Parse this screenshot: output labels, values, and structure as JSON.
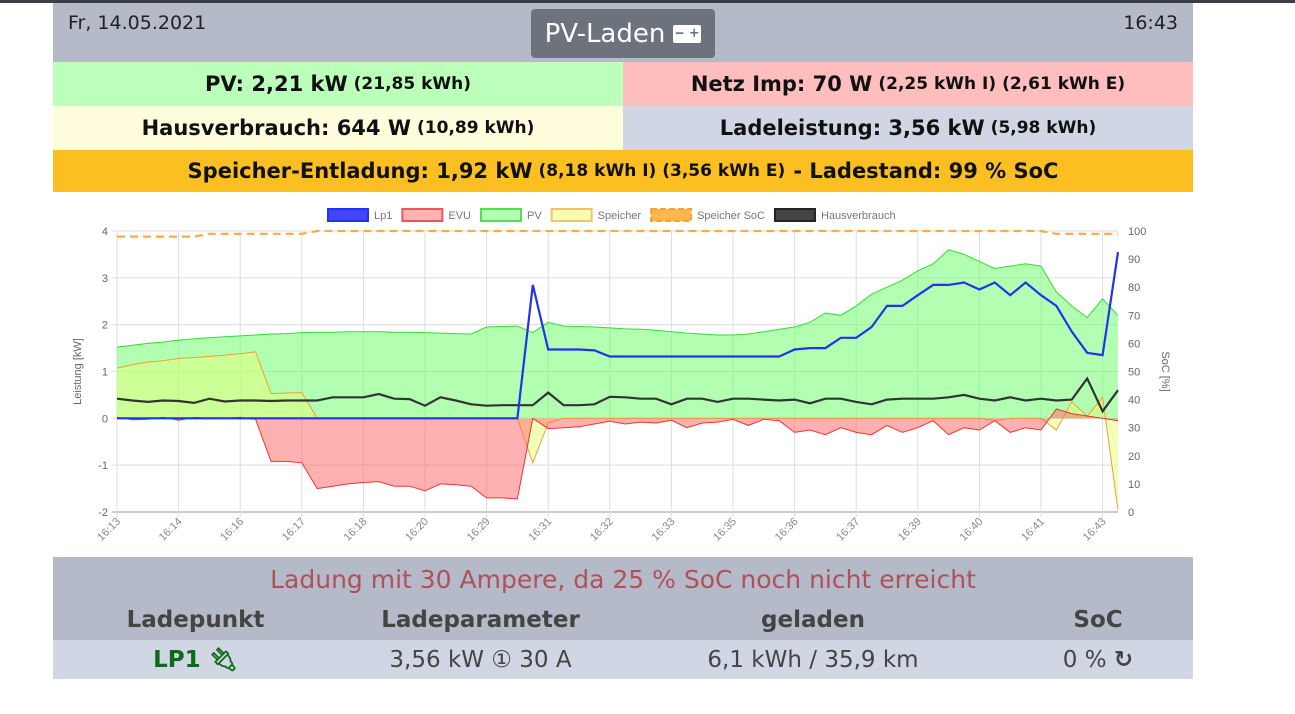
{
  "header": {
    "date": "Fr, 14.05.2021",
    "mode": "PV-Laden",
    "mode_icon": "car-battery-icon",
    "time": "16:43"
  },
  "tiles": {
    "pv": {
      "label": "PV: 2,21 kW",
      "sub": "(21,85 kWh)",
      "color": "#bbffbb"
    },
    "netz": {
      "label": "Netz Imp: 70 W",
      "sub": "(2,25 kWh I) (2,61 kWh E)",
      "color": "#ffbebe"
    },
    "haus": {
      "label": "Hausverbrauch: 644 W",
      "sub": "(10,89 kWh)",
      "color": "#fffddd"
    },
    "lade": {
      "label": "Ladeleistung: 3,56 kW",
      "sub": "(5,98 kWh)",
      "color": "#d0d6e4"
    },
    "speicher": {
      "label": "Speicher-Entladung: 1,92 kW",
      "sub": "(8,18 kWh I) (3,56 kWh E)",
      "tail": "- Ladestand: 99 % SoC",
      "color": "#fcbf22"
    }
  },
  "chart_data": {
    "type": "line",
    "ylabel": "Leistung [kW]",
    "y2label": "SoC [%]",
    "ylim": [
      -2,
      4
    ],
    "y2lim": [
      0,
      100
    ],
    "yticks": [
      "4",
      "3",
      "2",
      "1",
      "0",
      "-1",
      "-2"
    ],
    "y2ticks": [
      "100",
      "90",
      "80",
      "70",
      "60",
      "50",
      "40",
      "30",
      "20",
      "10",
      "0"
    ],
    "xticklabels": [
      "16:13",
      "16:14",
      "16:16",
      "16:17",
      "16:18",
      "16:20",
      "16:29",
      "16:31",
      "16:32",
      "16:33",
      "16:35",
      "16:36",
      "16:37",
      "16:39",
      "16:40",
      "16:41",
      "16:43"
    ],
    "legend": [
      "Lp1",
      "EVU",
      "PV",
      "Speicher",
      "Speicher SoC",
      "Hausverbrauch"
    ],
    "series": [
      {
        "name": "PV",
        "color": "#33dd33",
        "fill": "rgba(102,255,102,0.5)",
        "values": [
          1.52,
          1.56,
          1.6,
          1.63,
          1.67,
          1.7,
          1.72,
          1.74,
          1.76,
          1.78,
          1.8,
          1.81,
          1.83,
          1.84,
          1.84,
          1.85,
          1.85,
          1.85,
          1.84,
          1.84,
          1.83,
          1.82,
          1.81,
          1.8,
          1.95,
          1.96,
          1.97,
          1.83,
          2.05,
          1.97,
          1.96,
          1.95,
          1.93,
          1.91,
          1.9,
          1.88,
          1.85,
          1.82,
          1.8,
          1.78,
          1.78,
          1.8,
          1.85,
          1.9,
          1.95,
          2.05,
          2.25,
          2.2,
          2.4,
          2.65,
          2.8,
          2.95,
          3.15,
          3.3,
          3.6,
          3.5,
          3.35,
          3.2,
          3.25,
          3.3,
          3.25,
          2.7,
          2.4,
          2.15,
          2.55,
          2.2
        ]
      },
      {
        "name": "Speicher",
        "color": "#f0a030",
        "fill": "rgba(230,255,120,0.5)",
        "values": [
          1.07,
          1.15,
          1.2,
          1.23,
          1.28,
          1.3,
          1.32,
          1.35,
          1.38,
          1.42,
          0.53,
          0.54,
          0.55,
          0,
          0,
          0,
          0,
          0,
          0,
          0,
          0,
          0,
          0,
          0,
          0,
          0,
          0,
          -0.95,
          -0.1,
          0,
          0,
          0,
          0,
          0,
          0,
          0,
          0,
          0,
          0,
          0,
          0,
          0,
          0,
          0,
          0,
          0,
          0,
          0,
          0,
          0,
          0,
          0,
          0,
          0,
          0,
          0,
          0,
          -0.05,
          0,
          0,
          0,
          -0.25,
          0.35,
          0.05,
          0.45,
          -1.95
        ]
      },
      {
        "name": "EVU",
        "color": "#ee3333",
        "fill": "rgba(255,100,100,0.5)",
        "values": [
          0.02,
          -0.03,
          -0.02,
          0.02,
          -0.04,
          0.02,
          0,
          0,
          0.02,
          -0.02,
          -0.92,
          -0.92,
          -0.95,
          -1.5,
          -1.45,
          -1.4,
          -1.37,
          -1.35,
          -1.45,
          -1.45,
          -1.55,
          -1.4,
          -1.42,
          -1.45,
          -1.7,
          -1.7,
          -1.72,
          0,
          -0.22,
          -0.2,
          -0.18,
          -0.12,
          -0.06,
          -0.12,
          -0.08,
          -0.1,
          -0.04,
          -0.2,
          -0.1,
          -0.08,
          -0.02,
          -0.15,
          -0.02,
          -0.05,
          -0.3,
          -0.25,
          -0.35,
          -0.2,
          -0.3,
          -0.35,
          -0.15,
          -0.3,
          -0.2,
          -0.05,
          -0.35,
          -0.2,
          -0.25,
          -0.05,
          -0.3,
          -0.2,
          -0.25,
          0.2,
          0.1,
          0.05,
          0,
          -0.05
        ]
      },
      {
        "name": "Hausverbrauch",
        "color": "#333333",
        "values": [
          0.42,
          0.38,
          0.35,
          0.38,
          0.37,
          0.33,
          0.42,
          0.36,
          0.38,
          0.38,
          0.37,
          0.38,
          0.38,
          0.38,
          0.45,
          0.45,
          0.45,
          0.52,
          0.42,
          0.41,
          0.27,
          0.45,
          0.38,
          0.3,
          0.27,
          0.28,
          0.28,
          0.28,
          0.55,
          0.28,
          0.28,
          0.3,
          0.46,
          0.45,
          0.42,
          0.42,
          0.3,
          0.42,
          0.42,
          0.35,
          0.42,
          0.42,
          0.4,
          0.38,
          0.4,
          0.32,
          0.42,
          0.42,
          0.35,
          0.3,
          0.4,
          0.42,
          0.42,
          0.42,
          0.45,
          0.5,
          0.42,
          0.38,
          0.45,
          0.38,
          0.42,
          0.38,
          0.4,
          0.85,
          0.15,
          0.6
        ]
      },
      {
        "name": "Lp1",
        "color": "#2233ee",
        "values": [
          0,
          0,
          0,
          0,
          0,
          0,
          0,
          0,
          0,
          0,
          0,
          0,
          0,
          0,
          0,
          0,
          0,
          0,
          0,
          0,
          0,
          0,
          0,
          0,
          0,
          0,
          0,
          2.85,
          1.47,
          1.47,
          1.47,
          1.45,
          1.32,
          1.32,
          1.32,
          1.32,
          1.32,
          1.32,
          1.32,
          1.32,
          1.32,
          1.32,
          1.32,
          1.32,
          1.47,
          1.5,
          1.5,
          1.72,
          1.72,
          1.95,
          2.4,
          2.4,
          2.63,
          2.85,
          2.85,
          2.9,
          2.75,
          2.9,
          2.63,
          2.9,
          2.63,
          2.4,
          1.85,
          1.4,
          1.35,
          3.55
        ]
      },
      {
        "name": "Speicher SoC",
        "color": "#ffaa44",
        "axis": "y2",
        "dashed": true,
        "values": [
          98,
          98,
          98,
          98,
          98,
          98,
          99,
          99,
          99,
          99,
          99,
          99,
          99,
          100,
          100,
          100,
          100,
          100,
          100,
          100,
          100,
          100,
          100,
          100,
          100,
          100,
          100,
          100,
          100,
          100,
          100,
          100,
          100,
          100,
          100,
          100,
          100,
          100,
          100,
          100,
          100,
          100,
          100,
          100,
          100,
          100,
          100,
          100,
          100,
          100,
          100,
          100,
          100,
          100,
          100,
          100,
          100,
          100,
          100,
          100,
          100,
          99,
          99,
          99,
          99,
          99
        ]
      }
    ]
  },
  "bottom": {
    "message": "Ladung mit 30 Ampere, da 25 % SoC noch nicht erreicht",
    "columns": [
      "Ladepunkt",
      "Ladeparameter",
      "geladen",
      "SoC"
    ],
    "row": {
      "name": "LP1",
      "params": "3,56 kW ① 30 A",
      "charged": "6,1 kWh / 35,9 km",
      "soc": "0 %"
    }
  }
}
